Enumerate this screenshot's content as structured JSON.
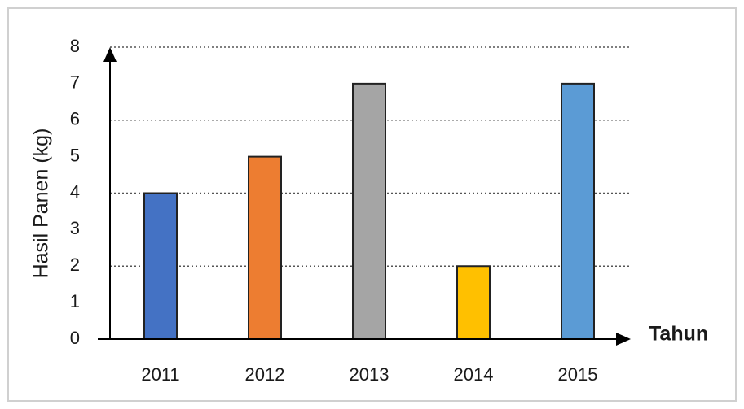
{
  "chart_data": {
    "type": "bar",
    "x_label": "Tahun",
    "y_label": "Hasil Panen (kg)",
    "categories": [
      "2011",
      "2012",
      "2013",
      "2014",
      "2015"
    ],
    "values": [
      4,
      5,
      7,
      2,
      7
    ],
    "colors": [
      "#4472c4",
      "#ed7d31",
      "#a5a5a5",
      "#ffc000",
      "#5b9bd5"
    ],
    "ylim": [
      0,
      8
    ],
    "yticks": [
      0,
      1,
      2,
      3,
      4,
      5,
      6,
      7,
      8
    ],
    "ygrid": [
      2,
      4,
      6,
      8
    ],
    "grid": true
  }
}
